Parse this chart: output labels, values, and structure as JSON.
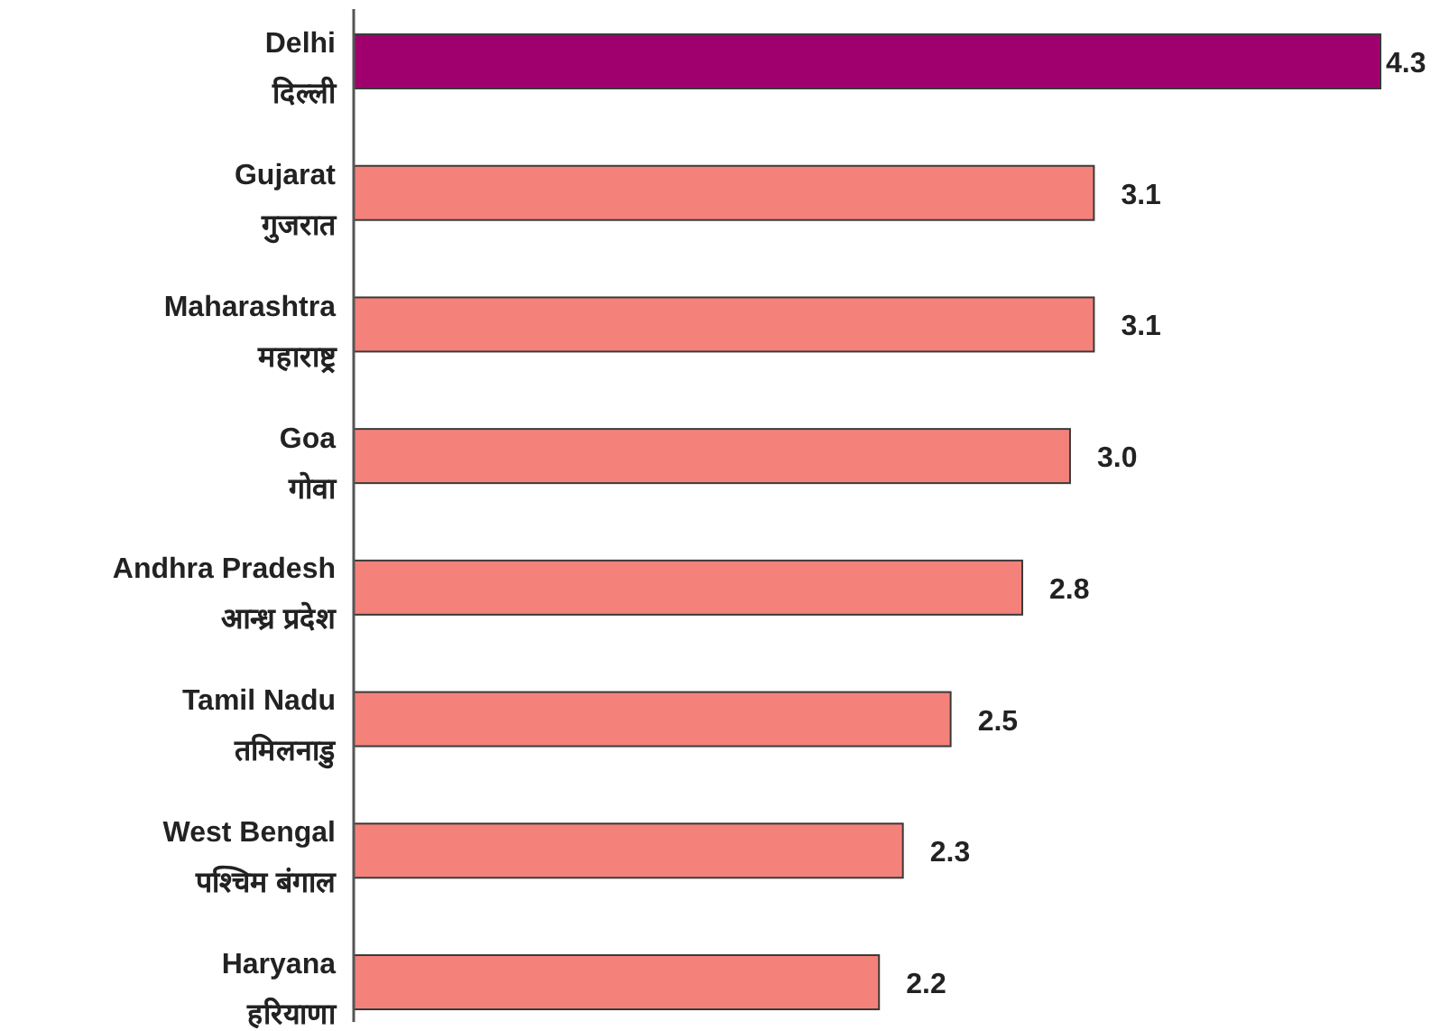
{
  "chart_data": {
    "type": "bar",
    "orientation": "horizontal",
    "categories": [
      "Delhi\nदिल्ली",
      "Gujarat\nगुजरात",
      "Maharashtra\nमहाराष्ट्र",
      "Goa\nगोवा",
      "Andhra Pradesh\nआन्ध्र प्रदेश",
      "Tamil Nadu\nतमिलनाडु",
      "West Bengal\nपश्चिम बंगाल",
      "Haryana\nहरियाणा"
    ],
    "values": [
      4.3,
      3.1,
      3.1,
      3.0,
      2.8,
      2.5,
      2.3,
      2.2
    ],
    "colors": [
      "#a0006e",
      "#f4827a",
      "#f4827a",
      "#f4827a",
      "#f4827a",
      "#f4827a",
      "#f4827a",
      "#f4827a"
    ],
    "value_labels": [
      "4.3",
      "3.1",
      "3.1",
      "3.0",
      "2.8",
      "2.5",
      "2.3",
      "2.2"
    ]
  }
}
